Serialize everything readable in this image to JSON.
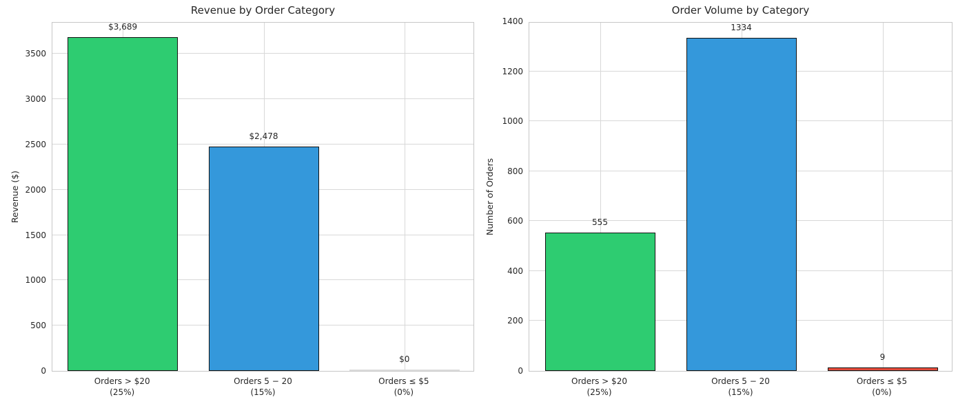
{
  "figure": {
    "background": "#ffffff",
    "text_color": "#262626",
    "grid_color": "#d8d8d8",
    "spine_color": "#c6c6c6",
    "bar_edge_color": "#111111"
  },
  "chart_data": [
    {
      "type": "bar",
      "title": "Revenue by Order Category",
      "xlabel": "",
      "ylabel": "Revenue ($)",
      "categories": [
        {
          "label": "Orders > $20",
          "pct": "(25%)"
        },
        {
          "label": "Orders 5 − 20",
          "pct": "(15%)"
        },
        {
          "label": "Orders ≤ $5",
          "pct": "(0%)"
        }
      ],
      "values": [
        3689,
        2478,
        0
      ],
      "bar_labels": [
        "$3,689",
        "$2,478",
        "$0"
      ],
      "bar_colors": [
        "#2ecc71",
        "#3498db",
        "#e74c3c"
      ],
      "yticks": [
        0,
        500,
        1000,
        1500,
        2000,
        2500,
        3000,
        3500
      ],
      "ylim": [
        0,
        3860
      ],
      "grid": true,
      "legend": null
    },
    {
      "type": "bar",
      "title": "Order Volume by Category",
      "xlabel": "",
      "ylabel": "Number of Orders",
      "categories": [
        {
          "label": "Orders > $20",
          "pct": "(25%)"
        },
        {
          "label": "Orders 5 − 20",
          "pct": "(15%)"
        },
        {
          "label": "Orders ≤ $5",
          "pct": "(0%)"
        }
      ],
      "values": [
        555,
        1334,
        9
      ],
      "bar_labels": [
        "555",
        "1334",
        "9"
      ],
      "bar_colors": [
        "#2ecc71",
        "#3498db",
        "#e74c3c"
      ],
      "yticks": [
        0,
        200,
        400,
        600,
        800,
        1000,
        1200,
        1400
      ],
      "ylim": [
        0,
        1400
      ],
      "grid": true,
      "legend": null
    }
  ]
}
